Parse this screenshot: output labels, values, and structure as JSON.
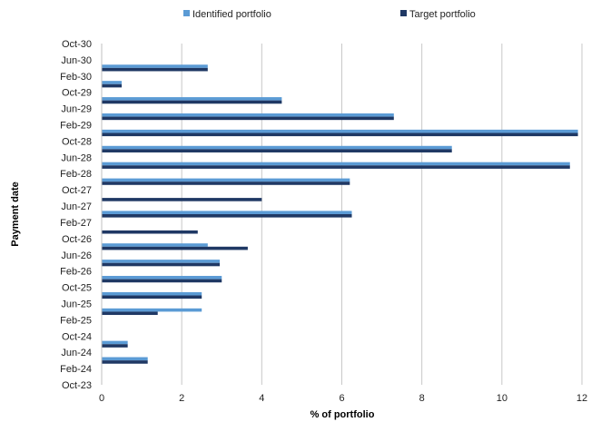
{
  "chart_data": {
    "type": "bar",
    "orientation": "horizontal",
    "categories": [
      "Oct-23",
      "Feb-24",
      "Jun-24",
      "Oct-24",
      "Feb-25",
      "Jun-25",
      "Oct-25",
      "Feb-26",
      "Jun-26",
      "Oct-26",
      "Feb-27",
      "Jun-27",
      "Oct-27",
      "Feb-28",
      "Jun-28",
      "Oct-28",
      "Feb-29",
      "Jun-29",
      "Oct-29",
      "Feb-30",
      "Jun-30",
      "Oct-30"
    ],
    "series": [
      {
        "name": "Identified portfolio",
        "color": "#5b9bd5",
        "values": [
          0,
          0,
          1.15,
          0.65,
          0,
          2.5,
          2.5,
          3.0,
          2.95,
          2.65,
          0,
          6.25,
          0,
          6.2,
          11.7,
          8.75,
          11.9,
          7.3,
          4.5,
          0.5,
          2.65,
          0
        ]
      },
      {
        "name": "Target portfolio",
        "color": "#1f3864",
        "values": [
          0,
          0,
          1.15,
          0.65,
          0,
          1.4,
          2.5,
          3.0,
          2.95,
          3.65,
          2.4,
          6.25,
          4.0,
          6.2,
          11.7,
          8.75,
          11.9,
          7.3,
          4.5,
          0.5,
          2.65,
          0
        ]
      }
    ],
    "xlabel": "% of portfolio",
    "ylabel": "Payment date",
    "xlim": [
      0,
      12
    ],
    "xticks": [
      0,
      2,
      4,
      6,
      8,
      10,
      12
    ],
    "grid": "vertical",
    "legend": "top-center"
  }
}
